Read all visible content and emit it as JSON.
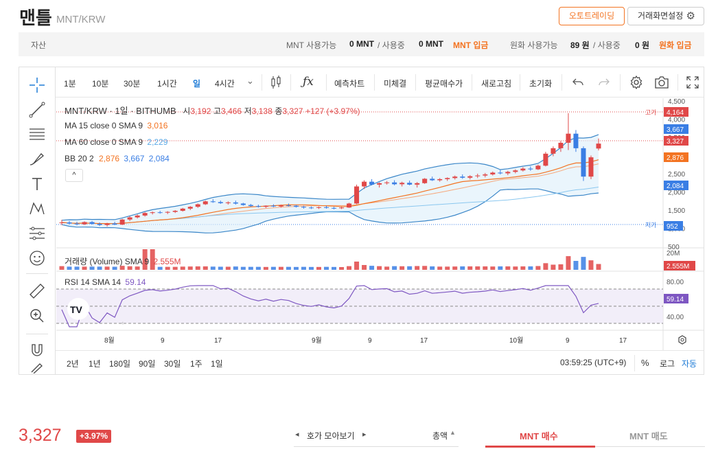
{
  "header": {
    "coin_name": "맨틀",
    "pair": "MNT/KRW",
    "auto_trading": "오토트레이딩",
    "screen_settings": "거래화면설정"
  },
  "assets": {
    "label": "자산",
    "mnt_available_label": "MNT 사용가능",
    "mnt_available": "0 MNT",
    "mnt_inuse_label": "/ 사용중",
    "mnt_inuse": "0 MNT",
    "mnt_deposit": "MNT 입금",
    "krw_available_label": "원화 사용가능",
    "krw_available": "89 원",
    "krw_inuse_label": "/ 사용중",
    "krw_inuse": "0 원",
    "krw_deposit": "원화 입금"
  },
  "toolbar": {
    "intervals": [
      "1분",
      "10분",
      "30분",
      "1시간",
      "일",
      "4시간"
    ],
    "active_interval": "일",
    "forecast": "예측차트",
    "unfilled": "미체결",
    "avg_price": "평균매수가",
    "refresh": "새로고침",
    "reset": "초기화"
  },
  "legend": {
    "symbol": "MNT/KRW · 1일 · BITHUMB",
    "o_label": "시",
    "o": "3,192",
    "h_label": "고",
    "h": "3,466",
    "l_label": "저",
    "l": "3,138",
    "c_label": "종",
    "c": "3,327",
    "change": "+127 (+3.97%)",
    "ma15_label": "MA 15 close 0 SMA 9",
    "ma15": "3,016",
    "ma60_label": "MA 60 close 0 SMA 9",
    "ma60": "2,229",
    "bb_label": "BB 20 2",
    "bb_mid": "2,876",
    "bb_up": "3,667",
    "bb_low": "2,084",
    "volume_label": "거래량 (Volume) SMA 9",
    "volume": "2.555M",
    "rsi_label": "RSI 14 SMA 14",
    "rsi": "59.14"
  },
  "price_axis": {
    "ticks": [
      "4,500",
      "4,000",
      "3,500",
      "3,000",
      "2,500",
      "2,000",
      "1,500",
      "1,000",
      "500"
    ],
    "high_tag": "고가",
    "high": "4,164",
    "low_tag": "저가",
    "low": "952",
    "bb_up": "3,667",
    "current": "3,327",
    "bb_mid": "2,876",
    "bb_low": "2,084",
    "vol_top": "20M",
    "vol_current": "2.555M",
    "rsi_ticks": [
      "80.00",
      "40.00"
    ],
    "rsi_current": "59.14"
  },
  "time_axis": [
    "8월",
    "9",
    "17",
    "9월",
    "9",
    "17",
    "10월",
    "9",
    "17"
  ],
  "ranges": [
    "2년",
    "1년",
    "180일",
    "90일",
    "30일",
    "1주",
    "1일"
  ],
  "clock": "03:59:25 (UTC+9)",
  "scale_opts": {
    "percent": "%",
    "log": "로그",
    "auto": "자동"
  },
  "ticker": {
    "price": "3,327",
    "change": "+3.97%"
  },
  "bottom_tabs": {
    "orderbook": "호가 모아보기",
    "total": "총액",
    "buy": "MNT 매수",
    "sell": "MNT 매도"
  },
  "colors": {
    "up": "#e04848",
    "down": "#3a7ee4",
    "accent": "#f37321",
    "ma15": "#f37321",
    "ma60": "#5aa9e6",
    "rsi": "#7e57c2"
  },
  "chart_data": {
    "type": "candlestick",
    "ohlc_daily_approx": [
      [
        1150,
        1230,
        1090,
        1160
      ],
      [
        1160,
        1200,
        1100,
        1130
      ],
      [
        1130,
        1180,
        1080,
        1110
      ],
      [
        1110,
        1190,
        1090,
        1170
      ],
      [
        1170,
        1200,
        1100,
        1120
      ],
      [
        1120,
        1160,
        1060,
        1090
      ],
      [
        1090,
        1150,
        1050,
        1130
      ],
      [
        1130,
        1180,
        1090,
        1100
      ],
      [
        1100,
        1260,
        1090,
        1240
      ],
      [
        1240,
        1330,
        1200,
        1300
      ],
      [
        1300,
        1380,
        1270,
        1350
      ],
      [
        1350,
        1440,
        1320,
        1420
      ],
      [
        1420,
        1460,
        1380,
        1440
      ],
      [
        1440,
        1480,
        1400,
        1430
      ],
      [
        1430,
        1470,
        1390,
        1450
      ],
      [
        1450,
        1500,
        1420,
        1480
      ],
      [
        1480,
        1560,
        1460,
        1540
      ],
      [
        1540,
        1610,
        1500,
        1590
      ],
      [
        1590,
        1680,
        1560,
        1660
      ],
      [
        1660,
        1760,
        1640,
        1740
      ],
      [
        1740,
        1800,
        1700,
        1720
      ],
      [
        1720,
        1760,
        1670,
        1690
      ],
      [
        1690,
        1740,
        1650,
        1710
      ],
      [
        1710,
        1760,
        1650,
        1680
      ],
      [
        1680,
        1700,
        1620,
        1640
      ],
      [
        1640,
        1670,
        1590,
        1610
      ],
      [
        1610,
        1650,
        1570,
        1590
      ],
      [
        1590,
        1630,
        1560,
        1620
      ],
      [
        1620,
        1660,
        1580,
        1600
      ],
      [
        1600,
        1650,
        1570,
        1630
      ],
      [
        1630,
        1680,
        1600,
        1620
      ],
      [
        1620,
        1640,
        1570,
        1590
      ],
      [
        1590,
        1620,
        1540,
        1570
      ],
      [
        1570,
        1600,
        1530,
        1560
      ],
      [
        1560,
        1600,
        1530,
        1580
      ],
      [
        1580,
        1620,
        1540,
        1560
      ],
      [
        1560,
        1590,
        1520,
        1550
      ],
      [
        1550,
        1590,
        1530,
        1570
      ],
      [
        1570,
        1700,
        1560,
        1680
      ],
      [
        1680,
        2200,
        1660,
        2150
      ],
      [
        2150,
        2320,
        2080,
        2280
      ],
      [
        2280,
        2350,
        2180,
        2200
      ],
      [
        2200,
        2260,
        2120,
        2240
      ],
      [
        2240,
        2300,
        2200,
        2260
      ],
      [
        2260,
        2320,
        2180,
        2210
      ],
      [
        2210,
        2280,
        2150,
        2250
      ],
      [
        2250,
        2310,
        2180,
        2200
      ],
      [
        2200,
        2270,
        2120,
        2240
      ],
      [
        2240,
        2380,
        2220,
        2360
      ],
      [
        2360,
        2420,
        2300,
        2320
      ],
      [
        2320,
        2380,
        2280,
        2350
      ],
      [
        2350,
        2400,
        2300,
        2380
      ],
      [
        2380,
        2450,
        2340,
        2420
      ],
      [
        2420,
        2480,
        2360,
        2390
      ],
      [
        2390,
        2460,
        2340,
        2430
      ],
      [
        2430,
        2500,
        2380,
        2450
      ],
      [
        2450,
        2520,
        2400,
        2480
      ],
      [
        2480,
        2560,
        2450,
        2530
      ],
      [
        2530,
        2600,
        2480,
        2510
      ],
      [
        2510,
        2580,
        2460,
        2550
      ],
      [
        2550,
        2620,
        2510,
        2590
      ],
      [
        2590,
        2680,
        2560,
        2640
      ],
      [
        2640,
        2700,
        2580,
        2620
      ],
      [
        2620,
        2750,
        2600,
        2720
      ],
      [
        2720,
        3100,
        2700,
        3050
      ],
      [
        3050,
        3250,
        2980,
        3200
      ],
      [
        3200,
        3400,
        3100,
        3350
      ],
      [
        3350,
        4164,
        3150,
        3600
      ],
      [
        3600,
        3700,
        3100,
        3200
      ],
      [
        3200,
        3250,
        2300,
        2420
      ],
      [
        2420,
        3000,
        2350,
        2950
      ],
      [
        3192,
        3466,
        3138,
        3327
      ]
    ],
    "high": 4164,
    "low": 952,
    "ylim": [
      500,
      4500
    ],
    "bollinger": {
      "upper": 3667,
      "middle": 2876,
      "lower": 2084
    },
    "ma15": 3016,
    "ma60": 2229,
    "volume_current": 2555000,
    "rsi_current": 59.14
  }
}
